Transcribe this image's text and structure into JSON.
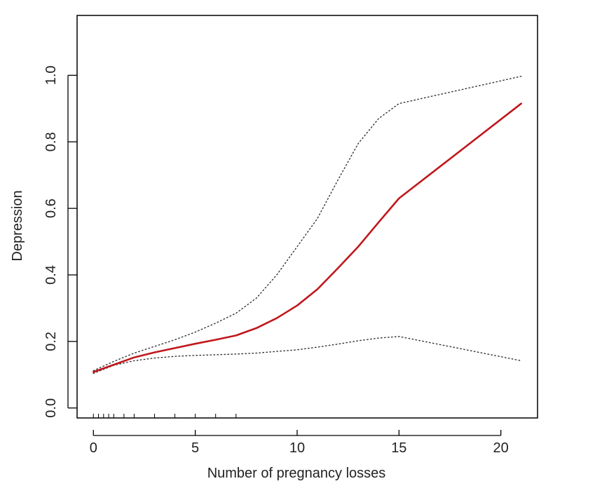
{
  "chart_data": {
    "type": "line",
    "xlabel": "Number of pregnancy losses",
    "ylabel": "Depression",
    "xlim": [
      -0.8,
      21.8
    ],
    "ylim": [
      -0.03,
      1.18
    ],
    "x_ticks": [
      0,
      5,
      10,
      15,
      20
    ],
    "x_tick_labels": [
      "0",
      "5",
      "10",
      "15",
      "20"
    ],
    "y_ticks": [
      0.0,
      0.2,
      0.4,
      0.6,
      0.8,
      1.0
    ],
    "y_tick_labels": [
      "0.0",
      "0.2",
      "0.4",
      "0.6",
      "0.8",
      "1.0"
    ],
    "grid": false,
    "colors": {
      "estimate": "#c0171c",
      "ci": "#333333",
      "axis": "#000000"
    },
    "rug": [
      0,
      0.25,
      0.5,
      0.75,
      1,
      1.5,
      2,
      3,
      4,
      5,
      6,
      7
    ],
    "series": [
      {
        "style": "solid",
        "x": [
          0,
          1,
          2,
          3,
          4,
          5,
          6,
          7,
          8,
          9,
          10,
          11,
          12,
          13,
          14,
          15,
          21
        ],
        "y": [
          0.108,
          0.13,
          0.152,
          0.167,
          0.18,
          0.193,
          0.205,
          0.218,
          0.24,
          0.27,
          0.308,
          0.357,
          0.42,
          0.485,
          0.558,
          0.63,
          0.915
        ]
      },
      {
        "style": "dotted",
        "x": [
          0,
          1,
          2,
          3,
          4,
          5,
          6,
          7,
          8,
          9,
          10,
          11,
          12,
          13,
          14,
          15,
          21
        ],
        "y": [
          0.112,
          0.14,
          0.165,
          0.185,
          0.205,
          0.228,
          0.255,
          0.285,
          0.33,
          0.4,
          0.485,
          0.57,
          0.685,
          0.795,
          0.87,
          0.915,
          0.997
        ]
      },
      {
        "style": "dotted",
        "x": [
          0,
          1,
          2,
          3,
          4,
          5,
          6,
          7,
          8,
          9,
          10,
          11,
          12,
          13,
          14,
          15,
          21
        ],
        "y": [
          0.104,
          0.128,
          0.142,
          0.15,
          0.155,
          0.158,
          0.16,
          0.162,
          0.165,
          0.17,
          0.175,
          0.183,
          0.192,
          0.202,
          0.21,
          0.215,
          0.142
        ]
      }
    ]
  }
}
